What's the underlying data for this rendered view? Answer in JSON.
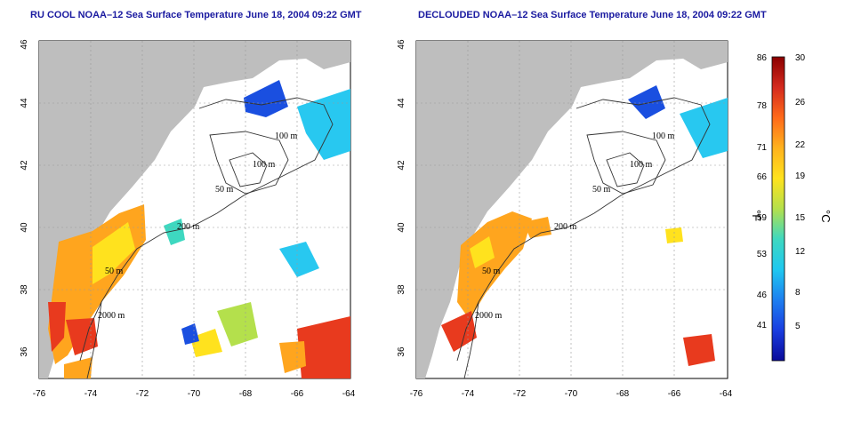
{
  "maps": [
    {
      "title": "RU COOL NOAA–12 Sea Surface Temperature June 18, 2004 09:22 GMT",
      "x_ticks": [
        "-76",
        "-74",
        "-72",
        "-70",
        "-68",
        "-66",
        "-64"
      ],
      "y_ticks": [
        "36",
        "38",
        "40",
        "42",
        "44",
        "46"
      ],
      "contour_labels": [
        "100 m",
        "100 m",
        "50 m",
        "200 m",
        "50 m",
        "2000 m"
      ]
    },
    {
      "title": "DECLOUDED NOAA–12 Sea Surface Temperature June 18, 2004 09:22 GMT",
      "x_ticks": [
        "-76",
        "-74",
        "-72",
        "-70",
        "-68",
        "-66",
        "-64"
      ],
      "y_ticks": [
        "36",
        "38",
        "40",
        "42",
        "44",
        "46"
      ],
      "contour_labels": [
        "100 m",
        "100 m",
        "50 m",
        "200 m",
        "50 m",
        "2000 m"
      ]
    }
  ],
  "colorbar": {
    "fahrenheit_ticks": [
      "86",
      "78",
      "71",
      "66",
      "59",
      "53",
      "46",
      "41"
    ],
    "celsius_ticks": [
      "30",
      "26",
      "22",
      "19",
      "15",
      "12",
      "8",
      "5"
    ],
    "fahrenheit_unit": "°F",
    "celsius_unit": "°C",
    "colors": [
      "#8b0000",
      "#d42a1e",
      "#ff6a1a",
      "#ffb21e",
      "#ffe21e",
      "#b4e04c",
      "#3ed8c0",
      "#1fc8f0",
      "#1e7ff0",
      "#1a3de0",
      "#0a0a9a"
    ]
  },
  "colors": {
    "land": "#bebebe",
    "title": "#1a1aa0",
    "cold": "#1a4fe0",
    "cool": "#28c8f0",
    "mild": "#ffe21e",
    "warm": "#ffa51e",
    "hot": "#e83a1e"
  }
}
